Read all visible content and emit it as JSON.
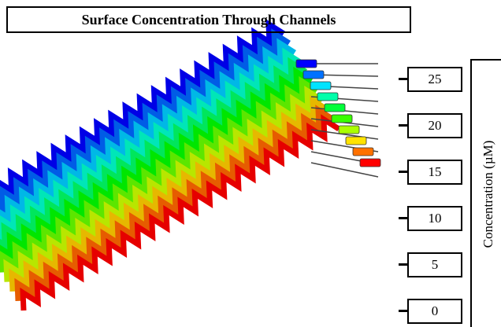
{
  "title": "Surface Concentration Through Channels",
  "colorbar": {
    "label": "Concentration (µM)",
    "ticks": [
      25,
      20,
      15,
      10,
      5,
      0
    ]
  }
}
